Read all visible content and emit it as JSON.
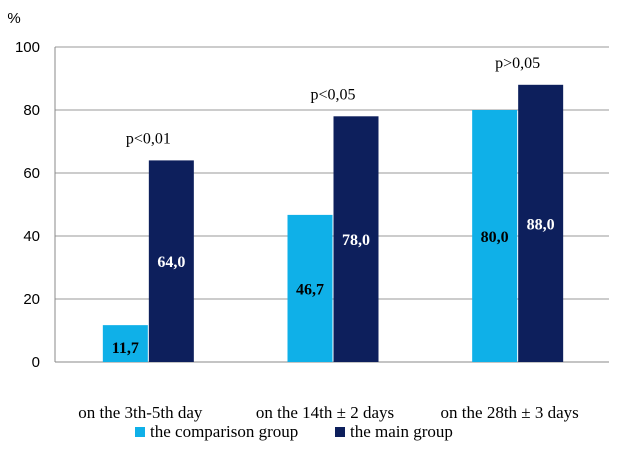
{
  "chart_data": {
    "type": "bar",
    "ylabel": "%",
    "ylim": [
      0,
      100
    ],
    "yticks": [
      "0",
      "20",
      "40",
      "60",
      "80",
      "100"
    ],
    "grid": true,
    "categories": [
      "on the 3th-5th day",
      "on the 14th ± 2 days",
      "on the 28th ± 3 days"
    ],
    "series": [
      {
        "name": "the comparison group",
        "color": "#0fb0e8",
        "values": [
          11.7,
          46.7,
          80.0
        ],
        "labels": [
          "11,7",
          "46,7",
          "80,0"
        ],
        "label_color": "#000000"
      },
      {
        "name": "the main group",
        "color": "#0d1f5c",
        "values": [
          64.0,
          78.0,
          88.0
        ],
        "labels": [
          "64,0",
          "78,0",
          "88,0"
        ],
        "label_color": "#ffffff"
      }
    ],
    "annotations": [
      "p<0,01",
      "p<0,05",
      "p>0,05"
    ],
    "legend_position": "bottom"
  }
}
